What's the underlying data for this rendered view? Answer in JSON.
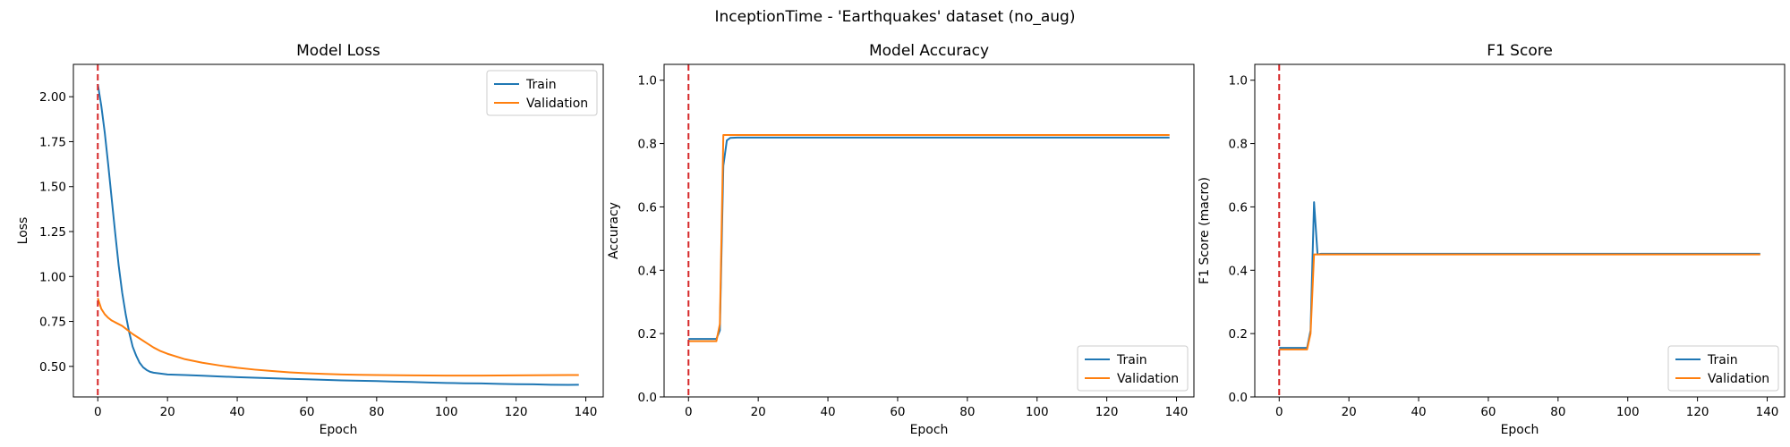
{
  "figure": {
    "title": "InceptionTime - 'Earthquakes' dataset (no_aug)"
  },
  "colors": {
    "train": "#1f77b4",
    "validation": "#ff7f0e",
    "marker": "#d62728"
  },
  "chart_data": [
    {
      "type": "line",
      "title": "Model Loss",
      "xlabel": "Epoch",
      "ylabel": "Loss",
      "xlim": [
        -7,
        145
      ],
      "ylim": [
        0.33,
        2.18
      ],
      "xticks": [
        0,
        20,
        40,
        60,
        80,
        100,
        120,
        140
      ],
      "xtick_labels": [
        "0",
        "20",
        "40",
        "60",
        "80",
        "100",
        "120",
        "140"
      ],
      "yticks": [
        0.5,
        0.75,
        1.0,
        1.25,
        1.5,
        1.75,
        2.0
      ],
      "ytick_labels": [
        "0.50",
        "0.75",
        "1.00",
        "1.25",
        "1.50",
        "1.75",
        "2.00"
      ],
      "grid": false,
      "legend": "upper right",
      "vline_x": 0,
      "series": [
        {
          "name": "Train",
          "color": "#1f77b4",
          "points": [
            [
              0,
              2.07
            ],
            [
              1,
              1.95
            ],
            [
              2,
              1.8
            ],
            [
              3,
              1.62
            ],
            [
              4,
              1.43
            ],
            [
              5,
              1.24
            ],
            [
              6,
              1.06
            ],
            [
              7,
              0.91
            ],
            [
              8,
              0.79
            ],
            [
              9,
              0.69
            ],
            [
              10,
              0.61
            ],
            [
              11,
              0.56
            ],
            [
              12,
              0.52
            ],
            [
              13,
              0.495
            ],
            [
              14,
              0.48
            ],
            [
              15,
              0.47
            ],
            [
              16,
              0.465
            ],
            [
              18,
              0.46
            ],
            [
              20,
              0.455
            ],
            [
              25,
              0.452
            ],
            [
              30,
              0.448
            ],
            [
              35,
              0.444
            ],
            [
              40,
              0.44
            ],
            [
              45,
              0.437
            ],
            [
              50,
              0.434
            ],
            [
              55,
              0.431
            ],
            [
              60,
              0.428
            ],
            [
              65,
              0.425
            ],
            [
              70,
              0.422
            ],
            [
              75,
              0.42
            ],
            [
              80,
              0.418
            ],
            [
              85,
              0.415
            ],
            [
              90,
              0.413
            ],
            [
              95,
              0.41
            ],
            [
              100,
              0.408
            ],
            [
              105,
              0.406
            ],
            [
              110,
              0.405
            ],
            [
              115,
              0.403
            ],
            [
              120,
              0.401
            ],
            [
              125,
              0.4
            ],
            [
              130,
              0.398
            ],
            [
              135,
              0.397
            ],
            [
              138,
              0.398
            ]
          ]
        },
        {
          "name": "Validation",
          "color": "#ff7f0e",
          "points": [
            [
              0,
              0.88
            ],
            [
              1,
              0.82
            ],
            [
              2,
              0.79
            ],
            [
              3,
              0.77
            ],
            [
              4,
              0.755
            ],
            [
              5,
              0.745
            ],
            [
              6,
              0.735
            ],
            [
              7,
              0.725
            ],
            [
              8,
              0.71
            ],
            [
              9,
              0.695
            ],
            [
              10,
              0.68
            ],
            [
              12,
              0.655
            ],
            [
              14,
              0.63
            ],
            [
              16,
              0.605
            ],
            [
              18,
              0.585
            ],
            [
              20,
              0.57
            ],
            [
              25,
              0.54
            ],
            [
              30,
              0.52
            ],
            [
              35,
              0.505
            ],
            [
              40,
              0.492
            ],
            [
              45,
              0.482
            ],
            [
              50,
              0.474
            ],
            [
              55,
              0.467
            ],
            [
              60,
              0.462
            ],
            [
              65,
              0.458
            ],
            [
              70,
              0.455
            ],
            [
              75,
              0.453
            ],
            [
              80,
              0.452
            ],
            [
              90,
              0.45
            ],
            [
              100,
              0.449
            ],
            [
              110,
              0.449
            ],
            [
              120,
              0.45
            ],
            [
              130,
              0.451
            ],
            [
              138,
              0.452
            ]
          ]
        }
      ]
    },
    {
      "type": "line",
      "title": "Model Accuracy",
      "xlabel": "Epoch",
      "ylabel": "Accuracy",
      "xlim": [
        -7,
        145
      ],
      "ylim": [
        0,
        1.05
      ],
      "xticks": [
        0,
        20,
        40,
        60,
        80,
        100,
        120,
        140
      ],
      "xtick_labels": [
        "0",
        "20",
        "40",
        "60",
        "80",
        "100",
        "120",
        "140"
      ],
      "yticks": [
        0.0,
        0.2,
        0.4,
        0.6,
        0.8,
        1.0
      ],
      "ytick_labels": [
        "0.0",
        "0.2",
        "0.4",
        "0.6",
        "0.8",
        "1.0"
      ],
      "grid": false,
      "legend": "lower right",
      "vline_x": 0,
      "series": [
        {
          "name": "Train",
          "color": "#1f77b4",
          "points": [
            [
              0,
              0.183
            ],
            [
              8,
              0.183
            ],
            [
              9,
              0.21
            ],
            [
              10,
              0.73
            ],
            [
              11,
              0.81
            ],
            [
              12,
              0.818
            ],
            [
              14,
              0.819
            ],
            [
              138,
              0.819
            ]
          ]
        },
        {
          "name": "Validation",
          "color": "#ff7f0e",
          "points": [
            [
              0,
              0.176
            ],
            [
              8,
              0.176
            ],
            [
              9,
              0.23
            ],
            [
              10,
              0.827
            ],
            [
              138,
              0.827
            ]
          ]
        }
      ]
    },
    {
      "type": "line",
      "title": "F1 Score",
      "xlabel": "Epoch",
      "ylabel": "F1 Score (macro)",
      "xlim": [
        -7,
        145
      ],
      "ylim": [
        0,
        1.05
      ],
      "xticks": [
        0,
        20,
        40,
        60,
        80,
        100,
        120,
        140
      ],
      "xtick_labels": [
        "0",
        "20",
        "40",
        "60",
        "80",
        "100",
        "120",
        "140"
      ],
      "yticks": [
        0.0,
        0.2,
        0.4,
        0.6,
        0.8,
        1.0
      ],
      "ytick_labels": [
        "0.0",
        "0.2",
        "0.4",
        "0.6",
        "0.8",
        "1.0"
      ],
      "grid": false,
      "legend": "lower right",
      "vline_x": 0,
      "series": [
        {
          "name": "Train",
          "color": "#1f77b4",
          "points": [
            [
              0,
              0.155
            ],
            [
              8,
              0.155
            ],
            [
              9,
              0.21
            ],
            [
              10,
              0.615
            ],
            [
              11,
              0.45
            ],
            [
              12,
              0.452
            ],
            [
              138,
              0.452
            ]
          ]
        },
        {
          "name": "Validation",
          "color": "#ff7f0e",
          "points": [
            [
              0,
              0.15
            ],
            [
              8,
              0.15
            ],
            [
              9,
              0.2
            ],
            [
              10,
              0.45
            ],
            [
              138,
              0.45
            ]
          ]
        }
      ]
    }
  ]
}
